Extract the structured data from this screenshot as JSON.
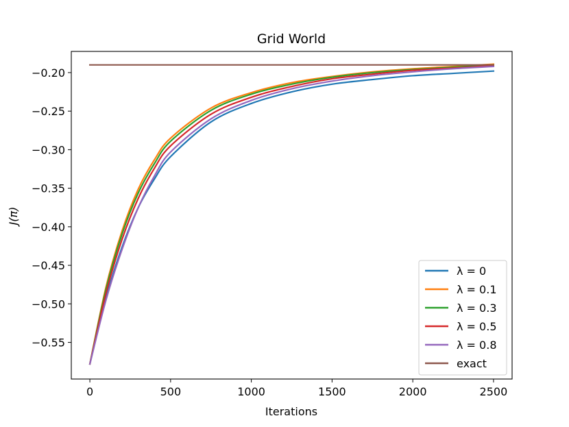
{
  "chart_data": {
    "type": "line",
    "title": "Grid World",
    "xlabel": "Iterations",
    "ylabel": "J(π)",
    "xlim": [
      -115,
      2615
    ],
    "ylim": [
      -0.5975,
      -0.1725
    ],
    "xticks": [
      0,
      500,
      1000,
      1500,
      2000,
      2500
    ],
    "xtick_labels": [
      "0",
      "500",
      "1000",
      "1500",
      "2000",
      "2500"
    ],
    "yticks": [
      -0.55,
      -0.5,
      -0.45,
      -0.4,
      -0.35,
      -0.3,
      -0.25,
      -0.2
    ],
    "ytick_labels": [
      "−0.55",
      "−0.50",
      "−0.45",
      "−0.40",
      "−0.35",
      "−0.30",
      "−0.25",
      "−0.20"
    ],
    "grid": false,
    "legend_position": "lower-right",
    "x": [
      0,
      100,
      200,
      300,
      400,
      500,
      750,
      1000,
      1250,
      1500,
      1750,
      2000,
      2250,
      2500
    ],
    "series": [
      {
        "name": "λ = 0",
        "color": "#1f77b4",
        "values": [
          -0.578,
          -0.492,
          -0.426,
          -0.375,
          -0.338,
          -0.309,
          -0.264,
          -0.24,
          -0.225,
          -0.215,
          -0.209,
          -0.204,
          -0.201,
          -0.198
        ]
      },
      {
        "name": "λ = 0.1",
        "color": "#ff7f0e",
        "values": [
          -0.578,
          -0.478,
          -0.405,
          -0.351,
          -0.313,
          -0.285,
          -0.246,
          -0.226,
          -0.213,
          -0.205,
          -0.199,
          -0.195,
          -0.192,
          -0.189
        ]
      },
      {
        "name": "λ = 0.3",
        "color": "#2ca02c",
        "values": [
          -0.578,
          -0.481,
          -0.409,
          -0.356,
          -0.318,
          -0.289,
          -0.249,
          -0.228,
          -0.215,
          -0.206,
          -0.2,
          -0.196,
          -0.193,
          -0.19
        ]
      },
      {
        "name": "λ = 0.5",
        "color": "#d62728",
        "values": [
          -0.578,
          -0.486,
          -0.416,
          -0.363,
          -0.324,
          -0.295,
          -0.254,
          -0.232,
          -0.218,
          -0.208,
          -0.202,
          -0.197,
          -0.194,
          -0.191
        ]
      },
      {
        "name": "λ = 0.8",
        "color": "#9467bd",
        "values": [
          -0.578,
          -0.495,
          -0.429,
          -0.375,
          -0.334,
          -0.303,
          -0.26,
          -0.236,
          -0.221,
          -0.211,
          -0.204,
          -0.199,
          -0.195,
          -0.192
        ]
      },
      {
        "name": "exact",
        "color": "#8c564b",
        "values": [
          -0.19,
          -0.19,
          -0.19,
          -0.19,
          -0.19,
          -0.19,
          -0.19,
          -0.19,
          -0.19,
          -0.19,
          -0.19,
          -0.19,
          -0.19,
          -0.19
        ]
      }
    ]
  }
}
